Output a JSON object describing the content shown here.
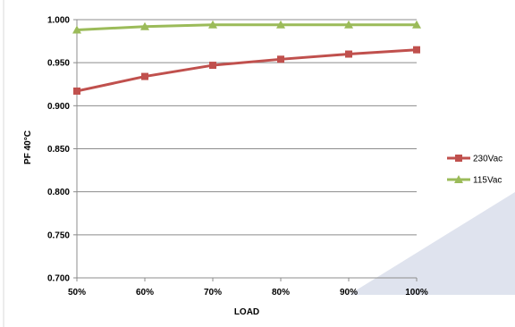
{
  "chart_data": {
    "type": "line",
    "title": "",
    "xlabel": "LOAD",
    "ylabel": "PF 40°C",
    "categories": [
      "50%",
      "60%",
      "70%",
      "80%",
      "90%",
      "100%"
    ],
    "ylim": [
      0.7,
      1.0
    ],
    "yticks": [
      "0.700",
      "0.750",
      "0.800",
      "0.850",
      "0.900",
      "0.950",
      "1.000"
    ],
    "grid": true,
    "legend": "right",
    "series": [
      {
        "name": "230Vac",
        "color": "#c0504d",
        "marker": "square",
        "values": [
          0.917,
          0.934,
          0.947,
          0.954,
          0.96,
          0.965
        ]
      },
      {
        "name": "115Vac",
        "color": "#9bbb59",
        "marker": "triangle",
        "values": [
          0.988,
          0.992,
          0.994,
          0.994,
          0.994,
          0.994
        ]
      }
    ]
  }
}
